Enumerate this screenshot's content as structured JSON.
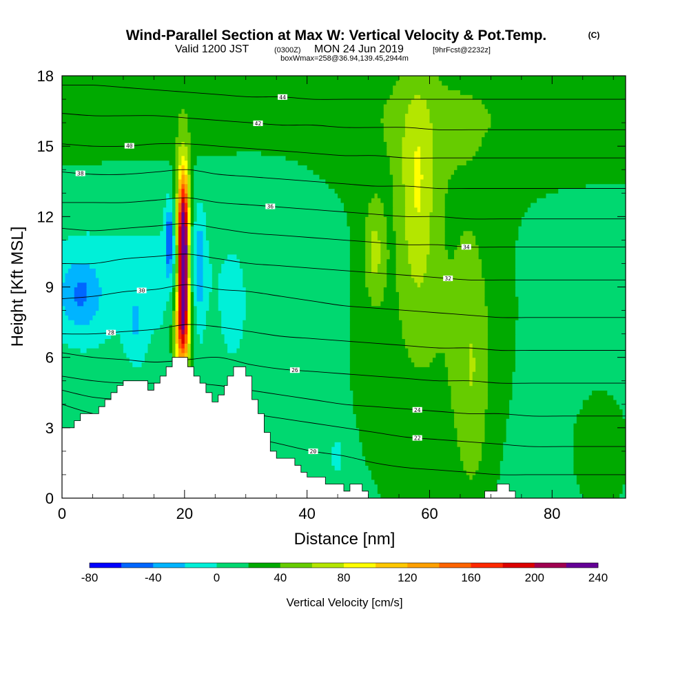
{
  "title": {
    "main": "Wind-Parallel Section at Max W: Vertical Velocity & Pot.Temp.",
    "copyright": "(C)",
    "valid_prefix": "Valid 1200 JST",
    "valid_utc": "(0300Z)",
    "valid_date": "MON 24 Jun 2019",
    "forecast": "[9hrFcst@2232z]",
    "box_info": "boxWmax=258@36.94,139.45,2944m"
  },
  "chart_data": {
    "type": "heatmap",
    "xlabel": "Distance [nm]",
    "ylabel": "Height [Kft MSL]",
    "xlim": [
      0,
      92
    ],
    "ylim": [
      0,
      18
    ],
    "x_ticks": [
      "0",
      "20",
      "40",
      "60",
      "80"
    ],
    "y_ticks": [
      "0",
      "3",
      "6",
      "9",
      "12",
      "15",
      "18"
    ],
    "colorbar": {
      "label": "Vertical Velocity [cm/s]",
      "ticks": [
        "-80",
        "-40",
        "0",
        "40",
        "80",
        "120",
        "160",
        "200",
        "240"
      ],
      "bins": [
        -80,
        -60,
        -40,
        -20,
        0,
        20,
        40,
        60,
        80,
        100,
        120,
        140,
        160,
        180,
        200,
        220,
        240
      ],
      "colors": [
        "#0000ff",
        "#0066ff",
        "#00b4ff",
        "#00f0d8",
        "#00d870",
        "#00aa00",
        "#66cc00",
        "#b4e600",
        "#ffff00",
        "#ffc800",
        "#ffa000",
        "#ff6400",
        "#ff2800",
        "#dc0000",
        "#a00050",
        "#640096"
      ]
    },
    "terrain_kft": [
      [
        0,
        3.0
      ],
      [
        1,
        3.0
      ],
      [
        2,
        3.3
      ],
      [
        3,
        3.6
      ],
      [
        5,
        3.6
      ],
      [
        6,
        3.9
      ],
      [
        7,
        4.2
      ],
      [
        8,
        4.5
      ],
      [
        9,
        4.8
      ],
      [
        10,
        5.0
      ],
      [
        13,
        5.0
      ],
      [
        14,
        4.6
      ],
      [
        15,
        4.9
      ],
      [
        16,
        5.2
      ],
      [
        17,
        5.6
      ],
      [
        18,
        6.0
      ],
      [
        19.5,
        6.0
      ],
      [
        20.5,
        5.6
      ],
      [
        21.5,
        5.2
      ],
      [
        22.5,
        4.9
      ],
      [
        23.5,
        4.5
      ],
      [
        24.5,
        4.1
      ],
      [
        25.5,
        4.4
      ],
      [
        26.5,
        4.8
      ],
      [
        27,
        5.2
      ],
      [
        28,
        5.6
      ],
      [
        29,
        5.6
      ],
      [
        30,
        5.2
      ],
      [
        31,
        4.2
      ],
      [
        32,
        3.6
      ],
      [
        33,
        2.8
      ],
      [
        34,
        2.0
      ],
      [
        35,
        1.7
      ],
      [
        37,
        1.7
      ],
      [
        38,
        1.4
      ],
      [
        39,
        1.1
      ],
      [
        40,
        0.9
      ],
      [
        42,
        0.9
      ],
      [
        43,
        0.6
      ],
      [
        45,
        0.6
      ],
      [
        46,
        0.3
      ],
      [
        47,
        0.6
      ],
      [
        48,
        0.6
      ],
      [
        49,
        0.3
      ],
      [
        50,
        0.0
      ],
      [
        68,
        0.0
      ],
      [
        69,
        0.3
      ],
      [
        71,
        0.6
      ],
      [
        72,
        0.6
      ],
      [
        73,
        0.3
      ],
      [
        74,
        0.0
      ],
      [
        92,
        0.0
      ]
    ],
    "theta_contours": [
      {
        "label": "20",
        "z": [
          4.0,
          3.6,
          3.4,
          3.4,
          3.3,
          3.0,
          2.6,
          2.3,
          2.0,
          1.8,
          1.5,
          1.3,
          1.2,
          1.1,
          1.0,
          1.0,
          1.0,
          1.0,
          1.0
        ],
        "label_at": 41
      },
      {
        "label": "22",
        "z": [
          4.6,
          4.3,
          4.2,
          4.2,
          4.1,
          3.8,
          3.6,
          3.4,
          3.2,
          3.0,
          2.8,
          2.6,
          2.5,
          2.4,
          2.3,
          2.2,
          2.2,
          2.2,
          2.2
        ],
        "label_at": 58
      },
      {
        "label": "24",
        "z": [
          5.2,
          5.0,
          4.9,
          4.9,
          4.9,
          4.8,
          4.6,
          4.4,
          4.2,
          4.0,
          3.9,
          3.8,
          3.7,
          3.6,
          3.6,
          3.5,
          3.5,
          3.5,
          3.5
        ],
        "label_at": 58
      },
      {
        "label": "26",
        "z": [
          6.2,
          6.0,
          5.9,
          5.8,
          5.9,
          6.0,
          5.7,
          5.5,
          5.4,
          5.3,
          5.2,
          5.1,
          5.0,
          5.0,
          4.9,
          4.9,
          4.9,
          4.9,
          4.9
        ],
        "label_at": 38
      },
      {
        "label": "28",
        "z": [
          7.0,
          7.0,
          7.1,
          7.2,
          7.4,
          7.3,
          7.1,
          6.9,
          6.8,
          6.7,
          6.6,
          6.5,
          6.4,
          6.4,
          6.3,
          6.3,
          6.3,
          6.3,
          6.3
        ],
        "label_at": 8
      },
      {
        "label": "30",
        "z": [
          8.5,
          8.6,
          8.8,
          8.9,
          9.1,
          8.9,
          8.8,
          8.6,
          8.4,
          8.2,
          8.1,
          8.0,
          7.9,
          7.8,
          7.7,
          7.7,
          7.7,
          7.7,
          7.7
        ],
        "label_at": 13
      },
      {
        "label": "32",
        "z": [
          10.0,
          10.0,
          10.2,
          10.3,
          10.4,
          10.2,
          10.0,
          9.9,
          9.8,
          9.7,
          9.6,
          9.5,
          9.4,
          9.3,
          9.3,
          9.3,
          9.3,
          9.3,
          9.3
        ],
        "label_at": 63
      },
      {
        "label": "34",
        "z": [
          11.5,
          11.4,
          11.5,
          11.6,
          11.7,
          11.5,
          11.3,
          11.2,
          11.1,
          11.0,
          10.9,
          10.8,
          10.8,
          10.7,
          10.7,
          10.7,
          10.7,
          10.7,
          10.7
        ],
        "label_at": 66
      },
      {
        "label": "36",
        "z": [
          12.6,
          12.6,
          12.6,
          12.7,
          12.8,
          12.6,
          12.5,
          12.4,
          12.3,
          12.2,
          12.1,
          12.0,
          12.0,
          11.9,
          11.9,
          11.9,
          11.9,
          11.9,
          11.9
        ],
        "label_at": 34
      },
      {
        "label": "38",
        "z": [
          13.9,
          13.8,
          13.8,
          13.9,
          14.0,
          13.8,
          13.7,
          13.6,
          13.5,
          13.4,
          13.3,
          13.3,
          13.2,
          13.2,
          13.2,
          13.2,
          13.2,
          13.2,
          13.2
        ],
        "label_at": 3
      },
      {
        "label": "40",
        "z": [
          15.1,
          15.0,
          15.0,
          15.1,
          15.1,
          15.0,
          14.9,
          14.8,
          14.7,
          14.6,
          14.6,
          14.5,
          14.5,
          14.5,
          14.5,
          14.5,
          14.5,
          14.5,
          14.5
        ],
        "label_at": 11
      },
      {
        "label": "42",
        "z": [
          16.4,
          16.3,
          16.3,
          16.3,
          16.2,
          16.1,
          16.0,
          15.9,
          15.9,
          15.8,
          15.8,
          15.8,
          15.7,
          15.7,
          15.7,
          15.7,
          15.7,
          15.7,
          15.7
        ],
        "label_at": 32
      },
      {
        "label": "44",
        "z": [
          17.6,
          17.6,
          17.5,
          17.4,
          17.3,
          17.2,
          17.1,
          17.1,
          17.0,
          17.0,
          17.0,
          17.0,
          17.0,
          17.0,
          17.0,
          17.0,
          17.0,
          17.0,
          17.0
        ],
        "label_at": 36
      }
    ]
  }
}
